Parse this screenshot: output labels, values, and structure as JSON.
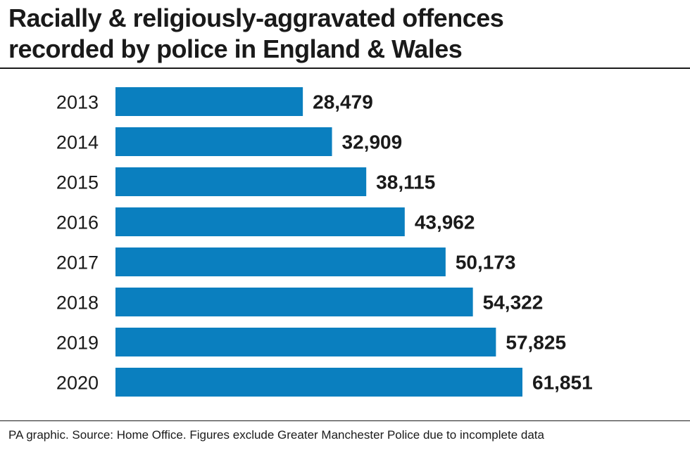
{
  "header": {
    "title_line1": "Racially & religiously-aggravated offences",
    "title_line2": "recorded by police in England & Wales"
  },
  "footer": {
    "source": "PA graphic. Source: Home Office. Figures exclude Greater Manchester Police due to incomplete data"
  },
  "chart_data": {
    "type": "bar",
    "orientation": "horizontal",
    "title": "Racially & religiously-aggravated offences recorded by police in England & Wales",
    "categories": [
      "2013",
      "2014",
      "2015",
      "2016",
      "2017",
      "2018",
      "2019",
      "2020"
    ],
    "values": [
      28479,
      32909,
      38115,
      43962,
      50173,
      54322,
      57825,
      61851
    ],
    "value_labels": [
      "28,479",
      "32,909",
      "38,115",
      "43,962",
      "50,173",
      "54,322",
      "57,825",
      "61,851"
    ],
    "xlim": [
      0,
      61851
    ],
    "grid": false,
    "legend": "none",
    "bar_color": "#0a7fbf",
    "text_color": "#1a1a1a"
  }
}
